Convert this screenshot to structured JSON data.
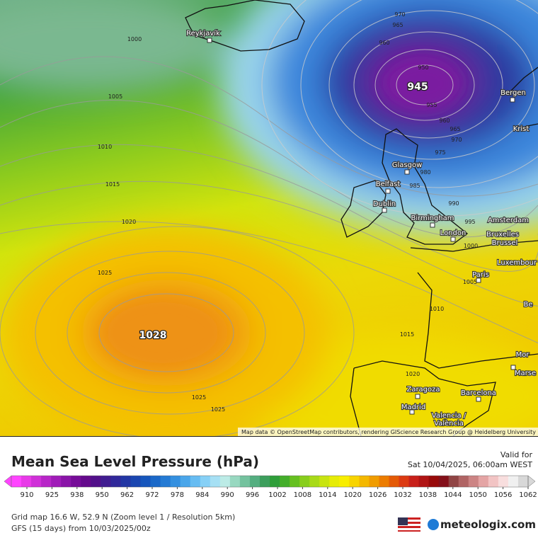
{
  "map": {
    "pressure_centers": [
      945,
      1028
    ],
    "contour_labels": [
      1000,
      1005,
      1010,
      1015,
      1020,
      1025,
      1025,
      1025,
      1015,
      1010,
      1005,
      1000,
      995,
      990,
      985,
      980,
      975,
      970,
      965,
      960,
      955,
      950,
      965,
      970,
      960,
      1020
    ],
    "cities": [
      "Reykjavík",
      "Bergen",
      "Krist",
      "Glasgow",
      "Belfast",
      "Dublin",
      "Birmingham",
      "London",
      "Amsterdam",
      "Bruxelles",
      "Brussel",
      "Luxembour",
      "Paris",
      "Be",
      "Mor",
      "Marse",
      "Zaragoza",
      "Barcelona",
      "Madrid",
      "Valencia /",
      "València"
    ],
    "attribution": "Map data © OpenStreetMap contributors, rendering GIScience Research Group @ Heidelberg University"
  },
  "legend": {
    "title": "Mean Sea Level Pressure (hPa)",
    "valid_for": "Valid for",
    "valid_time": "Sat 10/04/2025, 06:00am WEST",
    "colorbar": {
      "ticks": [
        910,
        925,
        938,
        950,
        962,
        972,
        978,
        984,
        990,
        996,
        1002,
        1008,
        1014,
        1020,
        1026,
        1032,
        1038,
        1044,
        1050,
        1056,
        1062
      ],
      "colors": [
        "#ff44ff",
        "#e83ae8",
        "#d030d8",
        "#b826c8",
        "#a01cb8",
        "#8a14a8",
        "#760c98",
        "#640a8c",
        "#52108a",
        "#401c90",
        "#30289a",
        "#2236a4",
        "#1a46b0",
        "#1656bc",
        "#1a68c8",
        "#247ad4",
        "#3490e0",
        "#4aa6ea",
        "#66bcf2",
        "#86d0f6",
        "#a6e0f4",
        "#bcebe6",
        "#98d8c0",
        "#74c29e",
        "#54ae80",
        "#3c9e5c",
        "#2f9e3a",
        "#44ae2a",
        "#66c020",
        "#88ce1c",
        "#a8da18",
        "#c8e410",
        "#e6ec06",
        "#f8ee00",
        "#f8d400",
        "#f4b800",
        "#f09c00",
        "#ec7c00",
        "#e45a06",
        "#dc3a12",
        "#c8201a",
        "#b01414",
        "#980a0a",
        "#84101a",
        "#904444",
        "#b06464",
        "#cc8484",
        "#e4a4a4",
        "#f2c4c4",
        "#f8dede",
        "#f0f0f0",
        "#d8d8d8"
      ]
    },
    "grid_info": "Grid map 16.6 W, 52.9 N (Zoom level 1 / Resolution 5km)",
    "model_run": "GFS (15 days) from  10/03/2025/00z",
    "brand": "meteologix.com"
  }
}
